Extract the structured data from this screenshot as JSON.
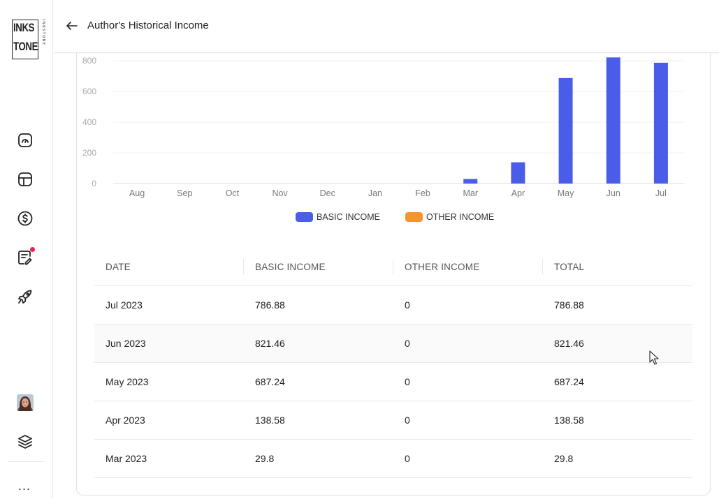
{
  "header": {
    "title": "Author's Historical Income"
  },
  "logo": {
    "line1": "INKS",
    "line2": "TONE",
    "side": "INKSTONE"
  },
  "sidebar": {
    "items": [
      {
        "icon": "dashboard-icon"
      },
      {
        "icon": "layout-icon"
      },
      {
        "icon": "dollar-icon"
      },
      {
        "icon": "edit-notes-icon",
        "badge": true
      },
      {
        "icon": "rocket-icon"
      }
    ],
    "bottom": [
      {
        "icon": "avatar"
      },
      {
        "icon": "layers-icon"
      },
      {
        "icon": "more-icon",
        "label": "..."
      }
    ]
  },
  "chart_data": {
    "type": "bar",
    "categories": [
      "Aug",
      "Sep",
      "Oct",
      "Nov",
      "Dec",
      "Jan",
      "Feb",
      "Mar",
      "Apr",
      "May",
      "Jun",
      "Jul"
    ],
    "series": [
      {
        "name": "BASIC INCOME",
        "color": "#4a5de8",
        "values": [
          0,
          0,
          0,
          0,
          0,
          0,
          0,
          29.8,
          138.58,
          687.24,
          821.46,
          786.88
        ]
      },
      {
        "name": "OTHER INCOME",
        "color": "#f7932f",
        "values": [
          0,
          0,
          0,
          0,
          0,
          0,
          0,
          0,
          0,
          0,
          0,
          0
        ]
      }
    ],
    "yticks": [
      0,
      200,
      400,
      600,
      800
    ],
    "ylim": [
      0,
      830
    ],
    "grid": true,
    "legend": "bottom-center"
  },
  "table": {
    "columns": [
      "DATE",
      "BASIC INCOME",
      "OTHER INCOME",
      "TOTAL"
    ],
    "rows": [
      {
        "date": "Jul 2023",
        "basic": "786.88",
        "other": "0",
        "total": "786.88"
      },
      {
        "date": "Jun 2023",
        "basic": "821.46",
        "other": "0",
        "total": "821.46"
      },
      {
        "date": "May 2023",
        "basic": "687.24",
        "other": "0",
        "total": "687.24"
      },
      {
        "date": "Apr 2023",
        "basic": "138.58",
        "other": "0",
        "total": "138.58"
      },
      {
        "date": "Mar 2023",
        "basic": "29.8",
        "other": "0",
        "total": "29.8"
      }
    ]
  }
}
